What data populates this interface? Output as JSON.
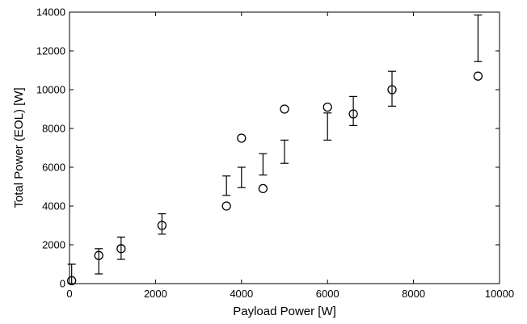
{
  "chart_data": {
    "type": "scatter",
    "title": "",
    "xlabel": "Payload Power [W]",
    "ylabel": "Total Power (EOL) [W]",
    "xlim": [
      0,
      10000
    ],
    "ylim": [
      0,
      14000
    ],
    "xticks": [
      0,
      2000,
      4000,
      6000,
      8000,
      10000
    ],
    "yticks": [
      0,
      2000,
      4000,
      6000,
      8000,
      10000,
      12000,
      14000
    ],
    "grid": false,
    "series": [
      {
        "marker": "circle",
        "points": [
          {
            "x": 50,
            "y": 150
          },
          {
            "x": 680,
            "y": 1450
          },
          {
            "x": 1200,
            "y": 1800
          },
          {
            "x": 2150,
            "y": 3000
          },
          {
            "x": 3650,
            "y": 4000
          },
          {
            "x": 4000,
            "y": 7500
          },
          {
            "x": 4500,
            "y": 4900
          },
          {
            "x": 5000,
            "y": 9000
          },
          {
            "x": 6000,
            "y": 9100
          },
          {
            "x": 6600,
            "y": 8750
          },
          {
            "x": 7500,
            "y": 10000
          },
          {
            "x": 9500,
            "y": 10700
          }
        ]
      },
      {
        "marker": "errorbar",
        "bars": [
          {
            "x": 50,
            "low": 0,
            "high": 1000
          },
          {
            "x": 680,
            "low": 500,
            "high": 1800
          },
          {
            "x": 1200,
            "low": 1250,
            "high": 2400
          },
          {
            "x": 2150,
            "low": 2550,
            "high": 3600
          },
          {
            "x": 3650,
            "low": 4550,
            "high": 5550
          },
          {
            "x": 4000,
            "low": 4950,
            "high": 6000
          },
          {
            "x": 4500,
            "low": 5600,
            "high": 6700
          },
          {
            "x": 5000,
            "low": 6200,
            "high": 7400
          },
          {
            "x": 6000,
            "low": 7400,
            "high": 8800
          },
          {
            "x": 6600,
            "low": 8150,
            "high": 9650
          },
          {
            "x": 7500,
            "low": 9150,
            "high": 10950
          },
          {
            "x": 9500,
            "low": 11450,
            "high": 13850
          }
        ]
      }
    ]
  }
}
